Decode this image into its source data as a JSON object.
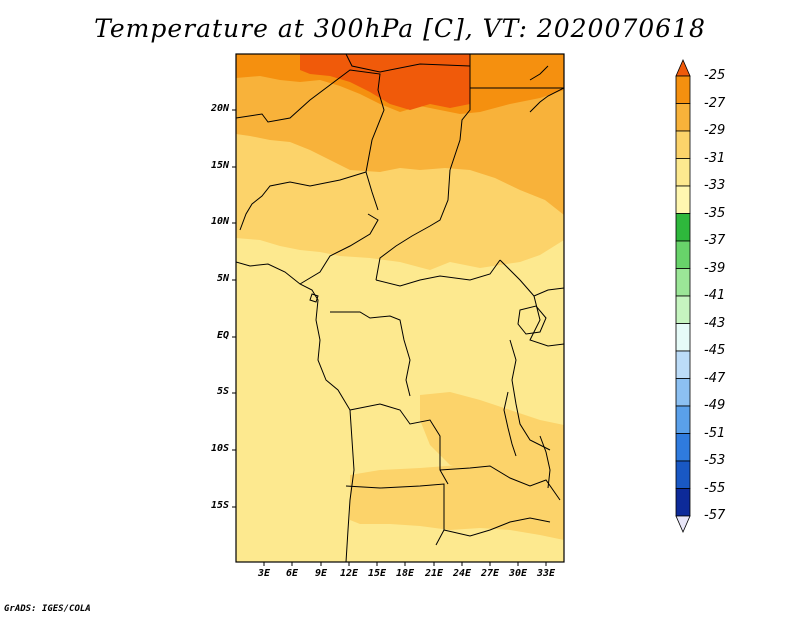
{
  "title": "Temperature at 300hPa [C], VT: 2020070618",
  "credit": "GrADS: IGES/COLA",
  "lat_labels": [
    "20N",
    "15N",
    "10N",
    "5N",
    "EQ",
    "5S",
    "10S",
    "15S"
  ],
  "lon_labels": [
    "3E",
    "6E",
    "9E",
    "12E",
    "15E",
    "18E",
    "21E",
    "24E",
    "27E",
    "30E",
    "33E"
  ],
  "colorbar": {
    "labels": [
      "-25",
      "-27",
      "-29",
      "-31",
      "-33",
      "-35",
      "-37",
      "-39",
      "-41",
      "-43",
      "-45",
      "-47",
      "-49",
      "-51",
      "-53",
      "-55",
      "-57"
    ],
    "colors": [
      "#f05a0a",
      "#f5900f",
      "#f8b23a",
      "#fcd36a",
      "#fde98f",
      "#fff7b0",
      "#2eb83c",
      "#68d36a",
      "#9be697",
      "#c6f5c0",
      "#e6fbf8",
      "#bcdcf8",
      "#8cc0f2",
      "#5aa0ea",
      "#2f7bde",
      "#1958c4",
      "#0d2a99",
      "#0a1470",
      "#e8e6f8"
    ]
  },
  "regions": {
    "c25": "#f05a0a",
    "c27": "#f5900f",
    "c29": "#f8b23a",
    "c31": "#fcd36a",
    "c33": "#fde98f"
  }
}
